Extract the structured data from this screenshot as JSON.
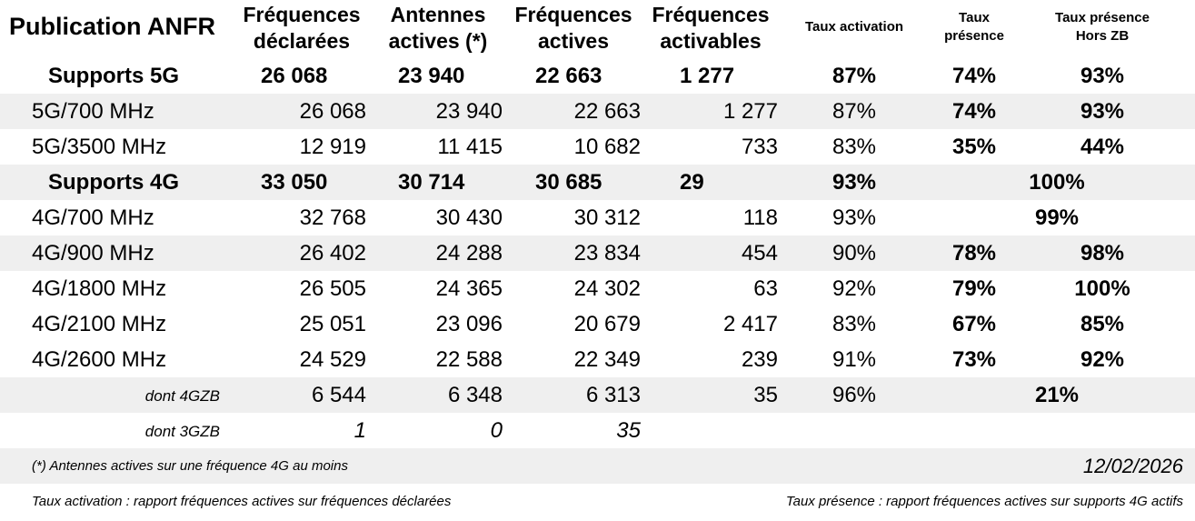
{
  "header": {
    "title": "Publication ANFR",
    "columns": [
      [
        "Fréquences",
        "déclarées"
      ],
      [
        "Antennes",
        "actives (*)"
      ],
      [
        "Fréquences",
        "actives"
      ],
      [
        "Fréquences",
        "activables"
      ],
      [
        "Taux activation"
      ],
      [
        "Taux",
        "présence"
      ],
      [
        "Taux présence",
        "Hors ZB"
      ]
    ]
  },
  "table": {
    "rows": [
      {
        "label": "Supports 5G",
        "cells": [
          "26 068",
          "23 940",
          "22 663",
          "1 277",
          "87%",
          "74%",
          "93%"
        ]
      },
      {
        "label": "5G/700 MHz",
        "cells": [
          "26 068",
          "23 940",
          "22 663",
          "1 277",
          "87%",
          "74%",
          "93%"
        ]
      },
      {
        "label": "5G/3500 MHz",
        "cells": [
          "12 919",
          "11 415",
          "10 682",
          "733",
          "83%",
          "35%",
          "44%"
        ]
      },
      {
        "label": "Supports 4G",
        "cells": [
          "33 050",
          "30 714",
          "30 685",
          "29",
          "93%",
          null,
          "100%"
        ]
      },
      {
        "label": "4G/700 MHz",
        "cells": [
          "32 768",
          "30 430",
          "30 312",
          "118",
          "93%",
          null,
          "99%"
        ]
      },
      {
        "label": "4G/900 MHz",
        "cells": [
          "26 402",
          "24 288",
          "23 834",
          "454",
          "90%",
          "78%",
          "98%"
        ]
      },
      {
        "label": "4G/1800 MHz",
        "cells": [
          "26 505",
          "24 365",
          "24 302",
          "63",
          "92%",
          "79%",
          "100%"
        ]
      },
      {
        "label": "4G/2100 MHz",
        "cells": [
          "25 051",
          "23 096",
          "20 679",
          "2 417",
          "83%",
          "67%",
          "85%"
        ]
      },
      {
        "label": "4G/2600 MHz",
        "cells": [
          "24 529",
          "22 588",
          "22 349",
          "239",
          "91%",
          "73%",
          "92%"
        ]
      },
      {
        "label": "dont 4GZB",
        "cells": [
          "6 544",
          "6 348",
          "6 313",
          "35",
          "96%",
          null,
          "21%"
        ]
      },
      {
        "label": "dont 3GZB",
        "cells": [
          "1",
          "0",
          "35",
          null,
          null,
          null,
          null
        ]
      }
    ]
  },
  "footer": {
    "note": "(*) Antennes actives sur une fréquence 4G au moins",
    "date": "12/02/2026",
    "definition_activation": "Taux activation : rapport fréquences actives sur fréquences déclarées",
    "definition_presence": "Taux présence : rapport fréquences actives sur supports 4G actifs"
  }
}
